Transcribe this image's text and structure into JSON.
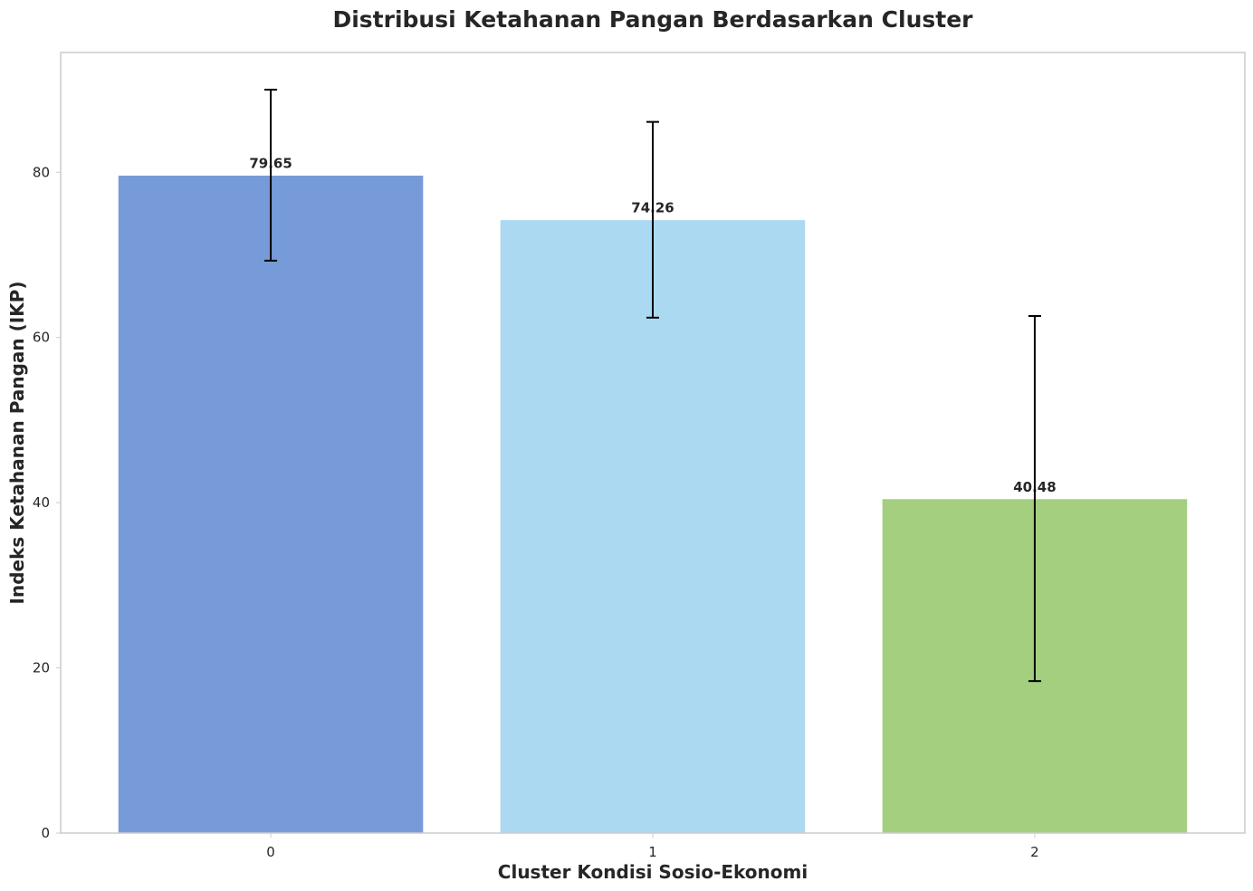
{
  "chart_data": {
    "type": "bar",
    "title": "Distribusi Ketahanan Pangan Berdasarkan Cluster",
    "xlabel": "Cluster Kondisi Sosio-Ekonomi",
    "ylabel": "Indeks Ketahanan Pangan (IKP)",
    "categories": [
      "0",
      "1",
      "2"
    ],
    "values": [
      79.65,
      74.26,
      40.48
    ],
    "value_labels": [
      "79.65",
      "74.26",
      "40.48"
    ],
    "error_bars": [
      {
        "low": 69.3,
        "high": 90.0
      },
      {
        "low": 62.4,
        "high": 86.1
      },
      {
        "low": 18.4,
        "high": 62.6
      }
    ],
    "colors": [
      "#769bd8",
      "#abd9f1",
      "#a3cf7f"
    ],
    "yticks": [
      0,
      20,
      40,
      60,
      80
    ],
    "ytick_labels": [
      "0",
      "20",
      "40",
      "60",
      "80"
    ],
    "ylim": [
      0,
      94.5
    ],
    "grid": false,
    "legend": "none"
  }
}
